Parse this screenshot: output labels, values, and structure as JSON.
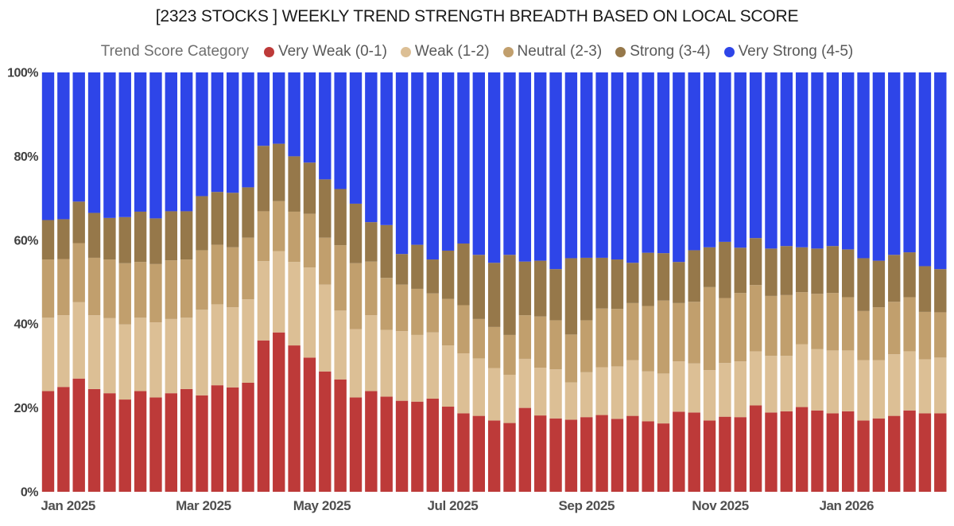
{
  "title": "[2323 STOCKS ] WEEKLY TREND STRENGTH BREADTH BASED ON LOCAL SCORE",
  "legend": {
    "category_label": "Trend Score Category",
    "items": [
      {
        "label": "Very Weak (0-1)",
        "color": "#bd3a39"
      },
      {
        "label": "Weak (1-2)",
        "color": "#dcbf95"
      },
      {
        "label": "Neutral (2-3)",
        "color": "#c19f6d"
      },
      {
        "label": "Strong (3-4)",
        "color": "#96784a"
      },
      {
        "label": "Very Strong (4-5)",
        "color": "#2e45e8"
      }
    ]
  },
  "y_axis": {
    "ticks": [
      {
        "label": "0%",
        "value": 0
      },
      {
        "label": "20%",
        "value": 20
      },
      {
        "label": "40%",
        "value": 40
      },
      {
        "label": "60%",
        "value": 60
      },
      {
        "label": "80%",
        "value": 80
      },
      {
        "label": "100%",
        "value": 100
      }
    ]
  },
  "x_axis": {
    "ticks": [
      {
        "label": "Jan 2025",
        "week": 1.3
      },
      {
        "label": "Mar 2025",
        "week": 10.1
      },
      {
        "label": "May 2025",
        "week": 17.8
      },
      {
        "label": "Jul 2025",
        "week": 26.3
      },
      {
        "label": "Sep 2025",
        "week": 35.0
      },
      {
        "label": "Nov 2025",
        "week": 43.7
      },
      {
        "label": "Jan 2026",
        "week": 51.9
      }
    ]
  },
  "chart_data": {
    "type": "bar",
    "stacked": true,
    "unit": "percent of 2323 stocks",
    "title": "[2323 STOCKS ] WEEKLY TREND STRENGTH BREADTH BASED ON LOCAL SCORE",
    "x_description": "weekly bars, Jan 2025 through Feb 2026",
    "num_weeks": 59,
    "ylim": [
      0,
      100
    ],
    "ytick_step": 20,
    "legend_position": "top",
    "grid": false,
    "series": [
      {
        "name": "Very Weak (0-1)",
        "color": "#bd3a39",
        "values": [
          24.0,
          25.0,
          27.0,
          24.5,
          23.5,
          22.0,
          24.0,
          22.5,
          23.5,
          24.5,
          23.0,
          25.4,
          24.9,
          26.0,
          36.1,
          38.0,
          34.9,
          32.0,
          28.7,
          26.8,
          22.5,
          24.0,
          22.7,
          21.7,
          21.5,
          22.2,
          20.3,
          18.7,
          18.1,
          17.0,
          16.4,
          20.0,
          18.2,
          17.5,
          17.2,
          17.8,
          18.3,
          17.4,
          18.1,
          16.8,
          16.3,
          19.1,
          18.9,
          17.0,
          17.9,
          17.8,
          20.6,
          18.9,
          19.2,
          20.2,
          19.4,
          18.7,
          19.2,
          17.0,
          17.5,
          18.1,
          19.4,
          18.7,
          18.7
        ]
      },
      {
        "name": "Weak (1-2)",
        "color": "#dcbf95",
        "values": [
          17.5,
          17.1,
          18.2,
          17.6,
          17.9,
          17.9,
          17.5,
          17.9,
          17.7,
          17.0,
          20.4,
          19.3,
          19.1,
          19.9,
          18.9,
          19.4,
          19.9,
          21.5,
          20.7,
          16.4,
          16.3,
          18.1,
          15.9,
          16.6,
          15.9,
          15.8,
          14.6,
          14.3,
          13.7,
          12.5,
          11.5,
          11.7,
          11.4,
          11.7,
          8.9,
          10.7,
          11.4,
          12.5,
          13.3,
          11.9,
          11.9,
          12.0,
          11.7,
          12.0,
          12.8,
          13.3,
          12.9,
          13.5,
          13.2,
          15.0,
          14.6,
          15.0,
          14.5,
          14.4,
          13.9,
          14.7,
          14.1,
          12.9,
          13.3
        ]
      },
      {
        "name": "Neutral (2-3)",
        "color": "#c19f6d",
        "values": [
          13.9,
          13.4,
          14.1,
          13.7,
          14.0,
          14.6,
          13.3,
          13.9,
          14.0,
          13.9,
          14.2,
          14.2,
          14.3,
          14.7,
          11.9,
          11.9,
          12.0,
          12.8,
          11.2,
          15.6,
          15.7,
          12.8,
          12.4,
          11.1,
          11.0,
          9.3,
          11.1,
          11.5,
          9.4,
          9.8,
          9.5,
          10.4,
          12.2,
          11.7,
          11.4,
          12.4,
          14.0,
          13.7,
          13.6,
          15.6,
          17.4,
          13.9,
          14.7,
          19.8,
          15.5,
          16.3,
          15.8,
          14.3,
          14.5,
          12.4,
          13.2,
          13.7,
          12.7,
          11.7,
          12.6,
          12.5,
          12.9,
          11.3,
          10.8
        ]
      },
      {
        "name": "Strong (3-4)",
        "color": "#96784a",
        "values": [
          9.4,
          9.5,
          9.9,
          10.7,
          9.9,
          11.0,
          12.0,
          10.9,
          11.7,
          11.5,
          12.9,
          12.6,
          13.0,
          12.0,
          15.6,
          13.7,
          13.2,
          12.2,
          13.9,
          13.4,
          14.2,
          9.4,
          12.6,
          7.3,
          10.5,
          8.1,
          11.5,
          14.7,
          15.3,
          15.3,
          19.1,
          12.8,
          13.3,
          12.2,
          18.2,
          14.9,
          12.1,
          11.8,
          9.6,
          12.7,
          11.3,
          9.8,
          12.3,
          9.5,
          13.4,
          10.8,
          11.2,
          11.3,
          11.7,
          10.7,
          10.8,
          11.2,
          11.4,
          12.6,
          11.1,
          11.2,
          10.7,
          10.9,
          10.3
        ]
      },
      {
        "name": "Very Strong (4-5)",
        "color": "#2e45e8",
        "values": [
          35.2,
          35.0,
          30.8,
          33.5,
          34.7,
          34.5,
          33.2,
          34.8,
          33.1,
          33.1,
          29.5,
          28.5,
          28.7,
          27.4,
          17.5,
          17.0,
          20.0,
          21.5,
          25.5,
          27.8,
          31.3,
          35.7,
          36.4,
          43.3,
          41.1,
          44.6,
          42.5,
          40.8,
          43.5,
          45.4,
          43.5,
          45.1,
          44.9,
          46.9,
          44.3,
          44.2,
          44.2,
          44.6,
          45.4,
          43.0,
          43.1,
          45.2,
          42.4,
          41.7,
          40.4,
          41.8,
          39.5,
          42.0,
          41.4,
          41.7,
          42.0,
          41.4,
          42.2,
          44.3,
          44.9,
          43.5,
          42.9,
          46.2,
          46.9
        ]
      }
    ]
  }
}
